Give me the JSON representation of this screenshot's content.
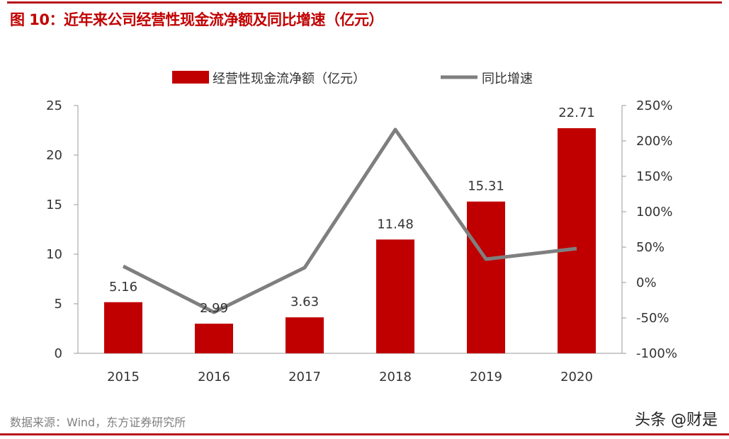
{
  "title": "图 10：近年来公司经营性现金流净额及同比增速（亿元）",
  "source": "数据来源：Wind，东方证券研究所",
  "watermark": "头条 @财是",
  "colors": {
    "bar": "#c00000",
    "line": "#7f7f7f",
    "accent": "#b5121b"
  },
  "chart_data": {
    "type": "bar+line",
    "categories": [
      "2015",
      "2016",
      "2017",
      "2018",
      "2019",
      "2020"
    ],
    "series": [
      {
        "name": "经营性现金流净额（亿元）",
        "type": "bar",
        "axis": "left",
        "values": [
          5.16,
          2.99,
          3.63,
          11.48,
          15.31,
          22.71
        ],
        "labels": [
          "5.16",
          "2.99",
          "3.63",
          "11.48",
          "15.31",
          "22.71"
        ]
      },
      {
        "name": "同比增速",
        "type": "line",
        "axis": "right",
        "values": [
          23,
          -42,
          21,
          216,
          33,
          48
        ]
      }
    ],
    "left_axis": {
      "min": 0,
      "max": 25,
      "ticks": [
        "0",
        "5",
        "10",
        "15",
        "20",
        "25"
      ]
    },
    "right_axis": {
      "min": -100,
      "max": 250,
      "ticks": [
        "-100%",
        "-50%",
        "0%",
        "50%",
        "100%",
        "150%",
        "200%",
        "250%"
      ]
    },
    "legend": "top",
    "grid": false
  }
}
